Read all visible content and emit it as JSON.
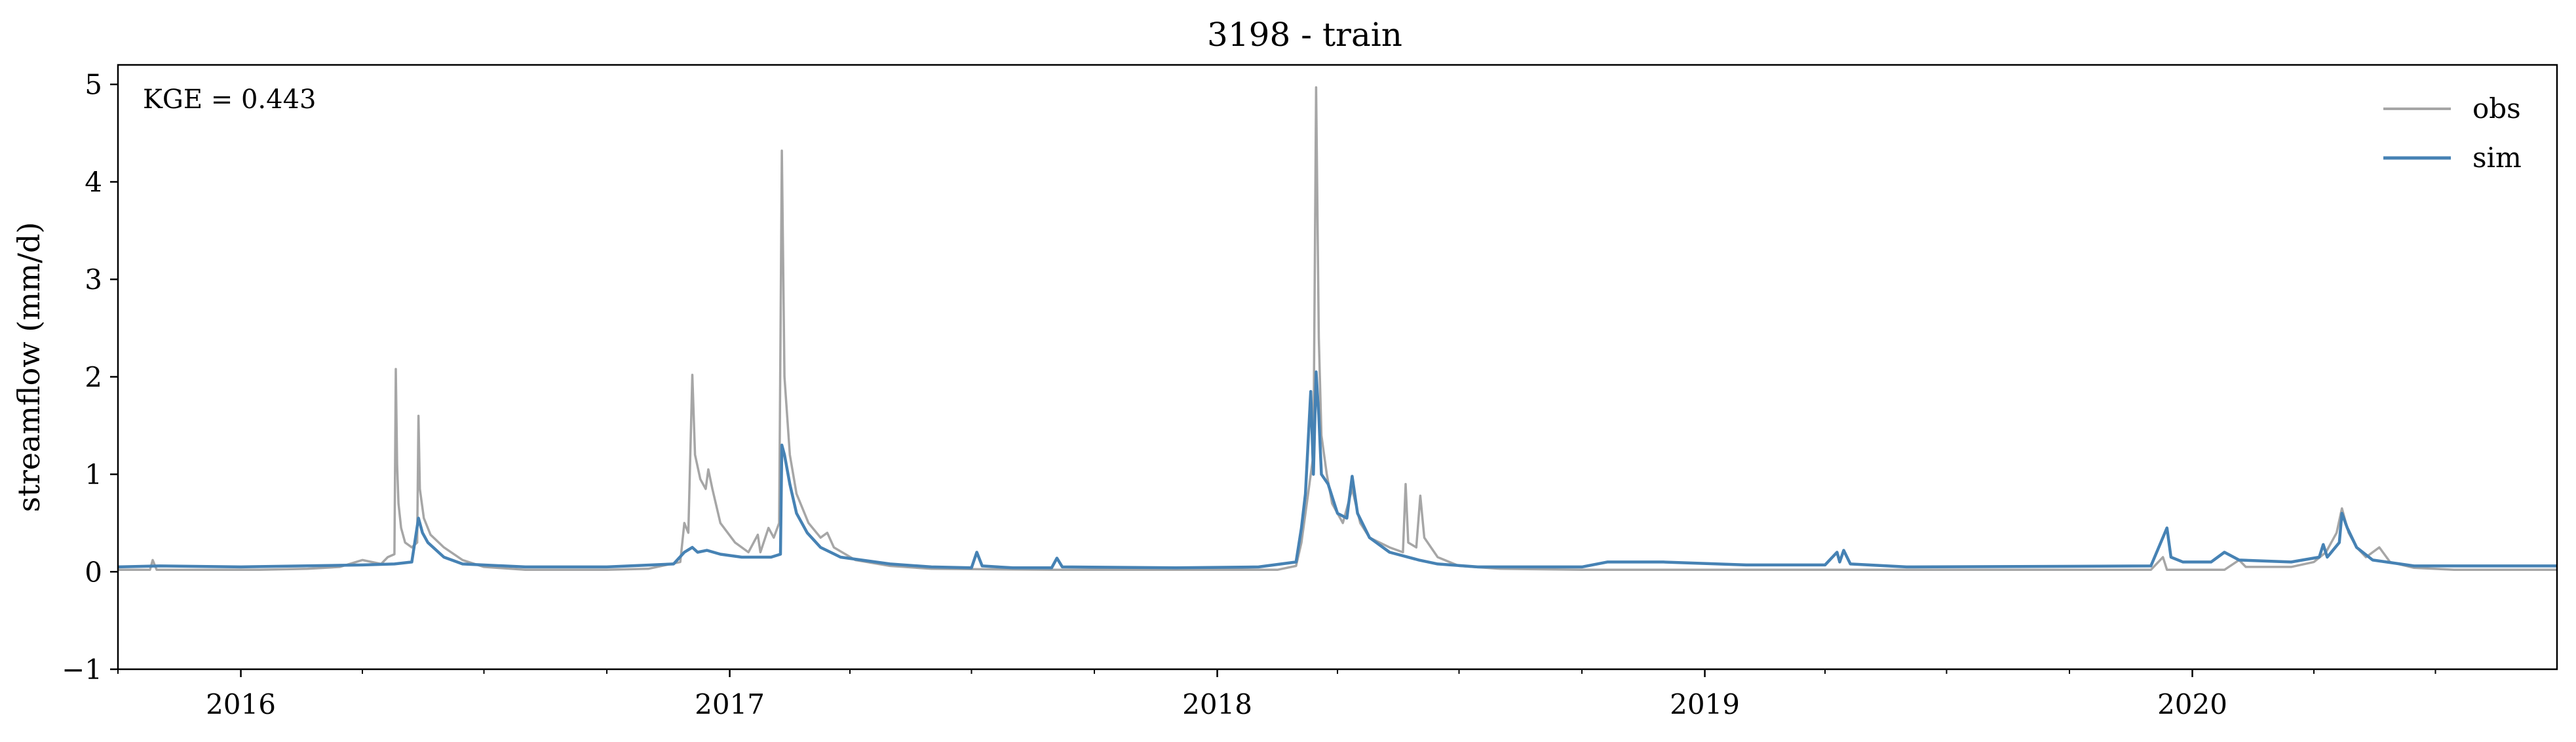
{
  "chart_data": {
    "type": "line",
    "title": "3198 - train",
    "xlabel": "",
    "ylabel": "streamflow (mm/d)",
    "annotation": "KGE = 0.443",
    "xlim": [
      "2015-10-01",
      "2020-09-30"
    ],
    "ylim": [
      -1,
      5.2
    ],
    "x_ticks": [
      "2016",
      "2017",
      "2018",
      "2019",
      "2020"
    ],
    "y_ticks": [
      "−1",
      "0",
      "1",
      "2",
      "3",
      "4",
      "5"
    ],
    "legend_position": "upper right",
    "grid": false,
    "series": [
      {
        "name": "obs",
        "color": "#a6a6a6",
        "points": [
          [
            "2015-10-01",
            0.02
          ],
          [
            "2015-10-25",
            0.02
          ],
          [
            "2015-10-27",
            0.12
          ],
          [
            "2015-10-30",
            0.02
          ],
          [
            "2015-12-01",
            0.02
          ],
          [
            "2016-01-15",
            0.02
          ],
          [
            "2016-02-20",
            0.03
          ],
          [
            "2016-03-15",
            0.05
          ],
          [
            "2016-04-01",
            0.12
          ],
          [
            "2016-04-15",
            0.08
          ],
          [
            "2016-04-20",
            0.15
          ],
          [
            "2016-04-25",
            0.18
          ],
          [
            "2016-04-26",
            2.08
          ],
          [
            "2016-04-27",
            1.1
          ],
          [
            "2016-04-28",
            0.7
          ],
          [
            "2016-04-30",
            0.45
          ],
          [
            "2016-05-03",
            0.3
          ],
          [
            "2016-05-08",
            0.25
          ],
          [
            "2016-05-12",
            0.3
          ],
          [
            "2016-05-13",
            1.6
          ],
          [
            "2016-05-14",
            0.85
          ],
          [
            "2016-05-17",
            0.55
          ],
          [
            "2016-05-22",
            0.38
          ],
          [
            "2016-06-01",
            0.25
          ],
          [
            "2016-06-15",
            0.12
          ],
          [
            "2016-07-01",
            0.05
          ],
          [
            "2016-08-01",
            0.02
          ],
          [
            "2016-10-01",
            0.02
          ],
          [
            "2016-11-01",
            0.03
          ],
          [
            "2016-11-25",
            0.1
          ],
          [
            "2016-11-28",
            0.5
          ],
          [
            "2016-12-01",
            0.4
          ],
          [
            "2016-12-04",
            2.02
          ],
          [
            "2016-12-06",
            1.2
          ],
          [
            "2016-12-10",
            0.95
          ],
          [
            "2016-12-14",
            0.85
          ],
          [
            "2016-12-16",
            1.05
          ],
          [
            "2016-12-19",
            0.85
          ],
          [
            "2016-12-25",
            0.5
          ],
          [
            "2017-01-05",
            0.3
          ],
          [
            "2017-01-15",
            0.2
          ],
          [
            "2017-01-22",
            0.38
          ],
          [
            "2017-01-24",
            0.2
          ],
          [
            "2017-01-30",
            0.45
          ],
          [
            "2017-02-03",
            0.35
          ],
          [
            "2017-02-07",
            0.5
          ],
          [
            "2017-02-09",
            4.32
          ],
          [
            "2017-02-11",
            2.0
          ],
          [
            "2017-02-15",
            1.2
          ],
          [
            "2017-02-20",
            0.8
          ],
          [
            "2017-03-01",
            0.5
          ],
          [
            "2017-03-10",
            0.35
          ],
          [
            "2017-03-15",
            0.4
          ],
          [
            "2017-03-20",
            0.25
          ],
          [
            "2017-04-05",
            0.12
          ],
          [
            "2017-05-01",
            0.06
          ],
          [
            "2017-06-01",
            0.03
          ],
          [
            "2017-09-01",
            0.02
          ],
          [
            "2018-01-01",
            0.02
          ],
          [
            "2018-02-15",
            0.02
          ],
          [
            "2018-03-01",
            0.06
          ],
          [
            "2018-03-05",
            0.3
          ],
          [
            "2018-03-10",
            0.8
          ],
          [
            "2018-03-14",
            1.2
          ],
          [
            "2018-03-16",
            4.97
          ],
          [
            "2018-03-18",
            2.4
          ],
          [
            "2018-03-20",
            1.4
          ],
          [
            "2018-03-24",
            1.0
          ],
          [
            "2018-03-28",
            0.7
          ],
          [
            "2018-04-05",
            0.5
          ],
          [
            "2018-04-12",
            0.85
          ],
          [
            "2018-04-18",
            0.5
          ],
          [
            "2018-04-25",
            0.35
          ],
          [
            "2018-05-10",
            0.25
          ],
          [
            "2018-05-20",
            0.2
          ],
          [
            "2018-05-22",
            0.9
          ],
          [
            "2018-05-24",
            0.3
          ],
          [
            "2018-05-30",
            0.25
          ],
          [
            "2018-06-02",
            0.78
          ],
          [
            "2018-06-05",
            0.35
          ],
          [
            "2018-06-15",
            0.15
          ],
          [
            "2018-07-01",
            0.06
          ],
          [
            "2018-08-01",
            0.03
          ],
          [
            "2018-10-01",
            0.02
          ],
          [
            "2019-06-01",
            0.02
          ],
          [
            "2019-12-01",
            0.02
          ],
          [
            "2019-12-10",
            0.15
          ],
          [
            "2019-12-13",
            0.02
          ],
          [
            "2020-01-25",
            0.02
          ],
          [
            "2020-02-05",
            0.12
          ],
          [
            "2020-02-10",
            0.05
          ],
          [
            "2020-03-15",
            0.05
          ],
          [
            "2020-04-01",
            0.1
          ],
          [
            "2020-04-10",
            0.2
          ],
          [
            "2020-04-18",
            0.4
          ],
          [
            "2020-04-22",
            0.65
          ],
          [
            "2020-04-27",
            0.4
          ],
          [
            "2020-05-03",
            0.25
          ],
          [
            "2020-05-10",
            0.15
          ],
          [
            "2020-05-20",
            0.25
          ],
          [
            "2020-05-28",
            0.1
          ],
          [
            "2020-06-15",
            0.04
          ],
          [
            "2020-07-15",
            0.02
          ],
          [
            "2020-09-30",
            0.02
          ]
        ]
      },
      {
        "name": "sim",
        "color": "#4682b4",
        "points": [
          [
            "2015-10-01",
            0.05
          ],
          [
            "2015-11-01",
            0.06
          ],
          [
            "2016-01-01",
            0.05
          ],
          [
            "2016-04-01",
            0.07
          ],
          [
            "2016-04-25",
            0.08
          ],
          [
            "2016-05-08",
            0.1
          ],
          [
            "2016-05-13",
            0.55
          ],
          [
            "2016-05-16",
            0.4
          ],
          [
            "2016-05-20",
            0.3
          ],
          [
            "2016-06-01",
            0.15
          ],
          [
            "2016-06-15",
            0.08
          ],
          [
            "2016-08-01",
            0.05
          ],
          [
            "2016-10-01",
            0.05
          ],
          [
            "2016-11-20",
            0.08
          ],
          [
            "2016-11-28",
            0.2
          ],
          [
            "2016-12-04",
            0.25
          ],
          [
            "2016-12-08",
            0.2
          ],
          [
            "2016-12-15",
            0.22
          ],
          [
            "2016-12-25",
            0.18
          ],
          [
            "2017-01-10",
            0.15
          ],
          [
            "2017-02-01",
            0.15
          ],
          [
            "2017-02-08",
            0.18
          ],
          [
            "2017-02-09",
            1.3
          ],
          [
            "2017-02-11",
            1.2
          ],
          [
            "2017-02-15",
            0.9
          ],
          [
            "2017-02-20",
            0.6
          ],
          [
            "2017-02-28",
            0.4
          ],
          [
            "2017-03-10",
            0.25
          ],
          [
            "2017-03-25",
            0.15
          ],
          [
            "2017-05-01",
            0.08
          ],
          [
            "2017-06-01",
            0.05
          ],
          [
            "2017-07-01",
            0.04
          ],
          [
            "2017-07-05",
            0.2
          ],
          [
            "2017-07-09",
            0.06
          ],
          [
            "2017-08-01",
            0.04
          ],
          [
            "2017-08-30",
            0.04
          ],
          [
            "2017-09-03",
            0.14
          ],
          [
            "2017-09-07",
            0.05
          ],
          [
            "2017-12-01",
            0.04
          ],
          [
            "2018-02-01",
            0.05
          ],
          [
            "2018-03-01",
            0.1
          ],
          [
            "2018-03-05",
            0.45
          ],
          [
            "2018-03-08",
            0.8
          ],
          [
            "2018-03-12",
            1.85
          ],
          [
            "2018-03-14",
            1.0
          ],
          [
            "2018-03-16",
            2.05
          ],
          [
            "2018-03-18",
            1.6
          ],
          [
            "2018-03-20",
            1.0
          ],
          [
            "2018-03-25",
            0.9
          ],
          [
            "2018-04-01",
            0.6
          ],
          [
            "2018-04-08",
            0.55
          ],
          [
            "2018-04-12",
            0.98
          ],
          [
            "2018-04-16",
            0.6
          ],
          [
            "2018-04-25",
            0.35
          ],
          [
            "2018-05-10",
            0.2
          ],
          [
            "2018-06-01",
            0.12
          ],
          [
            "2018-06-15",
            0.08
          ],
          [
            "2018-07-15",
            0.05
          ],
          [
            "2018-10-01",
            0.05
          ],
          [
            "2018-10-20",
            0.1
          ],
          [
            "2018-12-01",
            0.1
          ],
          [
            "2019-02-01",
            0.07
          ],
          [
            "2019-04-01",
            0.07
          ],
          [
            "2019-04-10",
            0.2
          ],
          [
            "2019-04-12",
            0.1
          ],
          [
            "2019-04-15",
            0.22
          ],
          [
            "2019-04-20",
            0.08
          ],
          [
            "2019-06-01",
            0.05
          ],
          [
            "2019-12-01",
            0.06
          ],
          [
            "2019-12-13",
            0.45
          ],
          [
            "2019-12-16",
            0.15
          ],
          [
            "2019-12-25",
            0.1
          ],
          [
            "2020-01-15",
            0.1
          ],
          [
            "2020-01-25",
            0.2
          ],
          [
            "2020-02-05",
            0.12
          ],
          [
            "2020-03-15",
            0.1
          ],
          [
            "2020-04-05",
            0.15
          ],
          [
            "2020-04-08",
            0.28
          ],
          [
            "2020-04-11",
            0.15
          ],
          [
            "2020-04-20",
            0.3
          ],
          [
            "2020-04-22",
            0.6
          ],
          [
            "2020-04-26",
            0.45
          ],
          [
            "2020-05-03",
            0.25
          ],
          [
            "2020-05-15",
            0.12
          ],
          [
            "2020-06-15",
            0.06
          ],
          [
            "2020-09-30",
            0.06
          ]
        ]
      }
    ]
  }
}
